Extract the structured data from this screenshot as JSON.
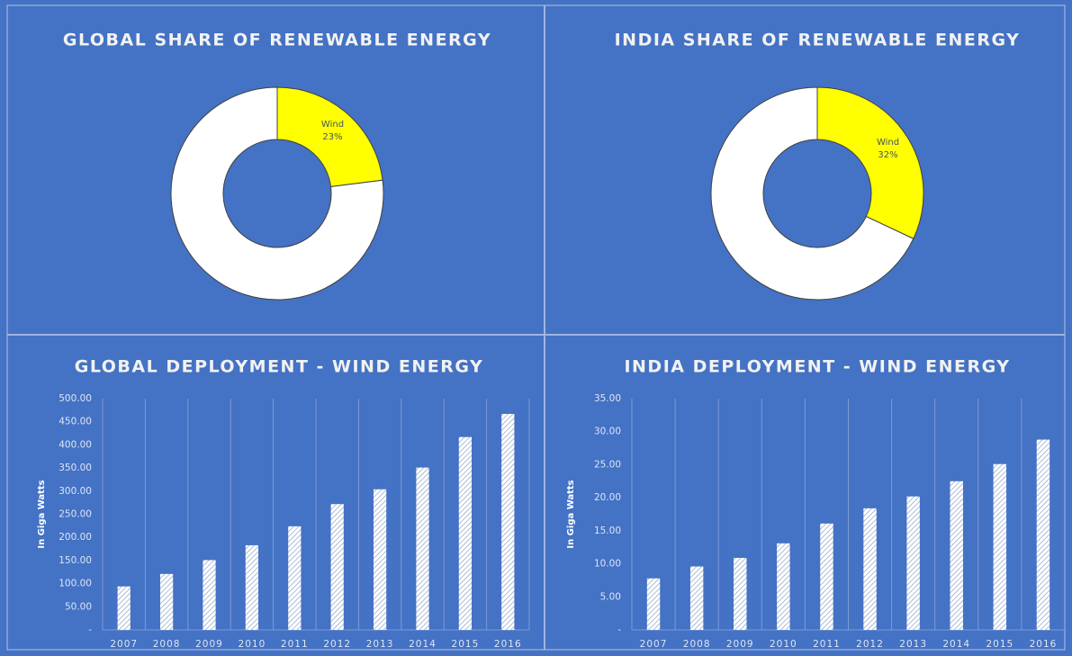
{
  "chart_data": [
    {
      "type": "pie",
      "title": "GLOBAL SHARE OF RENEWABLE ENERGY",
      "categories": [
        "Wind",
        null
      ],
      "values": [
        23,
        77
      ],
      "value_labels": [
        "23%",
        null
      ],
      "colors": [
        "#ffff00",
        "#ffffff"
      ],
      "donut": true
    },
    {
      "type": "pie",
      "title": "INDIA SHARE OF RENEWABLE ENERGY",
      "categories": [
        "Wind",
        null
      ],
      "values": [
        32,
        68
      ],
      "value_labels": [
        "32%",
        null
      ],
      "colors": [
        "#ffff00",
        "#ffffff"
      ],
      "donut": true
    },
    {
      "type": "bar",
      "title": "GLOBAL DEPLOYMENT  - WIND ENERGY",
      "y_label": "In Giga Watts",
      "categories": [
        "2007",
        "2008",
        "2009",
        "2010",
        "2011",
        "2012",
        "2013",
        "2014",
        "2015",
        "2016"
      ],
      "values": [
        94,
        121,
        151,
        183,
        224,
        272,
        304,
        351,
        417,
        467
      ],
      "color": "#dfe6f2",
      "hatched": true,
      "ylim": [
        0,
        500
      ],
      "yticks": [
        {
          "value": 0,
          "label": "-"
        },
        {
          "value": 50,
          "label": "50.00"
        },
        {
          "value": 100,
          "label": "100.00"
        },
        {
          "value": 150,
          "label": "150.00"
        },
        {
          "value": 200,
          "label": "200.00"
        },
        {
          "value": 250,
          "label": "250.00"
        },
        {
          "value": 300,
          "label": "300.00"
        },
        {
          "value": 350,
          "label": "350.00"
        },
        {
          "value": 400,
          "label": "400.00"
        },
        {
          "value": 450,
          "label": "450.00"
        },
        {
          "value": 500,
          "label": "500.00"
        }
      ]
    },
    {
      "type": "bar",
      "title": "INDIA DEPLOYMENT  - WIND ENERGY",
      "y_label": "In Giga Watts",
      "categories": [
        "2007",
        "2008",
        "2009",
        "2010",
        "2011",
        "2012",
        "2013",
        "2014",
        "2015",
        "2016"
      ],
      "values": [
        7.8,
        9.6,
        10.9,
        13.1,
        16.1,
        18.4,
        20.2,
        22.5,
        25.1,
        28.8
      ],
      "color": "#dfe6f2",
      "hatched": true,
      "ylim": [
        0,
        35
      ],
      "yticks": [
        {
          "value": 0,
          "label": "-"
        },
        {
          "value": 5,
          "label": "5.00"
        },
        {
          "value": 10,
          "label": "10.00"
        },
        {
          "value": 15,
          "label": "15.00"
        },
        {
          "value": 20,
          "label": "20.00"
        },
        {
          "value": 25,
          "label": "25.00"
        },
        {
          "value": 30,
          "label": "30.00"
        },
        {
          "value": 35,
          "label": "35.00"
        }
      ]
    }
  ]
}
